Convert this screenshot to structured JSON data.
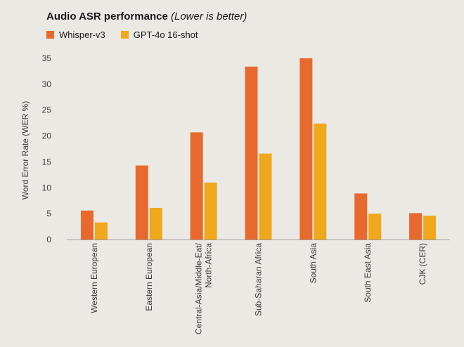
{
  "chart_data": {
    "type": "bar",
    "title": "Audio ASR performance",
    "subtitle": "(Lower is better)",
    "ylabel": "Word Error Rate (WER %)",
    "xlabel": "",
    "ylim": [
      0,
      35
    ],
    "yticks": [
      0,
      5,
      10,
      15,
      20,
      25,
      30,
      35
    ],
    "grid": false,
    "legend_position": "top-left",
    "categories": [
      [
        "Western European"
      ],
      [
        "Eastern European"
      ],
      [
        "Central-Asia/Middle-Eat/",
        "North-Africa"
      ],
      [
        "Sub-Saharan Africa"
      ],
      [
        "South Asia"
      ],
      [
        "South East Asia"
      ],
      [
        "CJK (CER)"
      ]
    ],
    "series": [
      {
        "name": "Whisper-v3",
        "color": "#e8692e",
        "values": [
          5.6,
          14.3,
          20.7,
          33.4,
          35.0,
          8.9,
          5.1
        ]
      },
      {
        "name": "GPT-4o 16-shot",
        "color": "#f0a81c",
        "values": [
          3.3,
          6.1,
          11.0,
          16.6,
          22.4,
          5.0,
          4.6
        ]
      }
    ]
  }
}
